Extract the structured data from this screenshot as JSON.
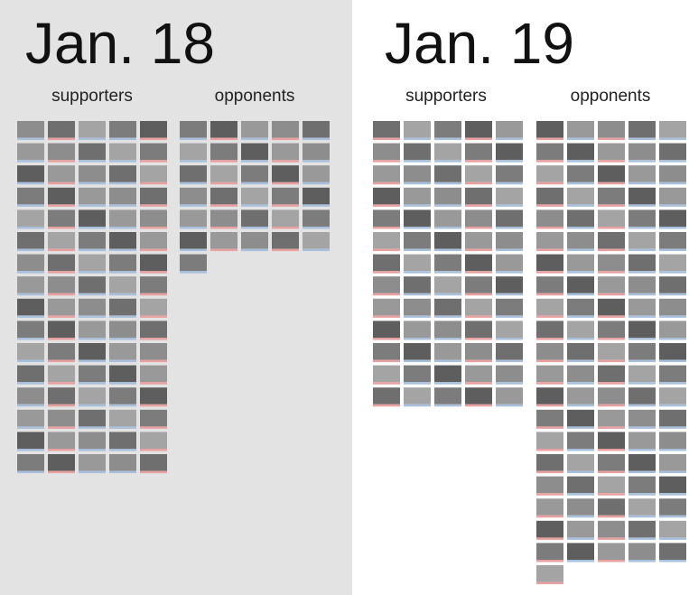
{
  "chart_data": [
    {
      "type": "unit",
      "title": "Jan. 18",
      "categories": [
        "supporters",
        "opponents"
      ],
      "values": [
        80,
        31
      ]
    },
    {
      "type": "unit",
      "title": "Jan. 19",
      "categories": [
        "supporters",
        "opponents"
      ],
      "values": [
        65,
        101
      ]
    }
  ]
}
